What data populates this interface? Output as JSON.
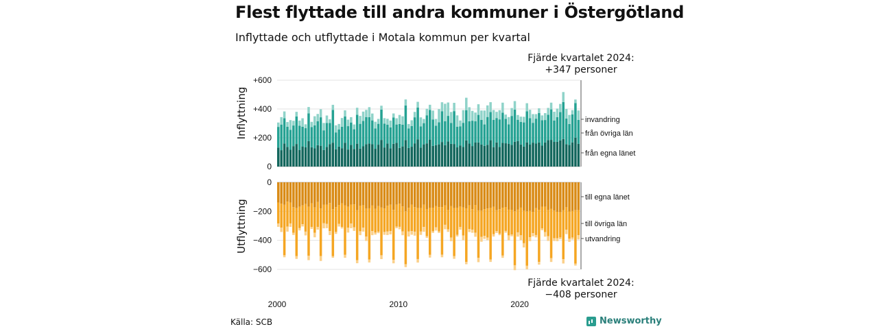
{
  "title": "Flest flyttade till andra kommuner i Östergötland",
  "subtitle": "Inflyttade och utflyttade i Motala kommun per kvartal",
  "annotation_top": {
    "line1": "Fjärde kvartalet 2024:",
    "line2": "+347 personer"
  },
  "annotation_bottom": {
    "line1": "Fjärde kvartalet 2024:",
    "line2": "−408 personer"
  },
  "source": "Källa: SCB",
  "brand": "Newsworthy",
  "colors": {
    "in_egna": "#12665c",
    "in_ovriga": "#25a293",
    "in_invandring": "#8fd3c9",
    "ut_egna": "#d98b16",
    "ut_ovriga": "#f5a623",
    "ut_utvandring": "#fbd08a"
  },
  "chart_data": [
    {
      "type": "bar",
      "stacked": true,
      "ylabel": "Inflyttning",
      "ylim": [
        0,
        600
      ],
      "yticks": [
        0,
        200,
        400,
        600
      ],
      "ytick_labels": [
        "0",
        "+200",
        "+400",
        "+600"
      ],
      "xticks": [
        2000,
        2010,
        2020
      ],
      "x_start": "2000 K1",
      "x_end": "2024 K4",
      "period": "kvartal",
      "series_labels": [
        "från egna länet",
        "från övriga län",
        "invandring"
      ],
      "last_total": 347
    },
    {
      "type": "bar",
      "stacked": true,
      "ylabel": "Utflyttning",
      "ylim": [
        -600,
        0
      ],
      "yticks": [
        0,
        -200,
        -400,
        -600
      ],
      "ytick_labels": [
        "0",
        "−200",
        "−400",
        "−600"
      ],
      "xticks": [
        2000,
        2010,
        2020
      ],
      "x_start": "2000 K1",
      "x_end": "2024 K4",
      "period": "kvartal",
      "series_labels": [
        "till egna länet",
        "till övriga län",
        "utvandring"
      ],
      "last_total": -408
    }
  ]
}
